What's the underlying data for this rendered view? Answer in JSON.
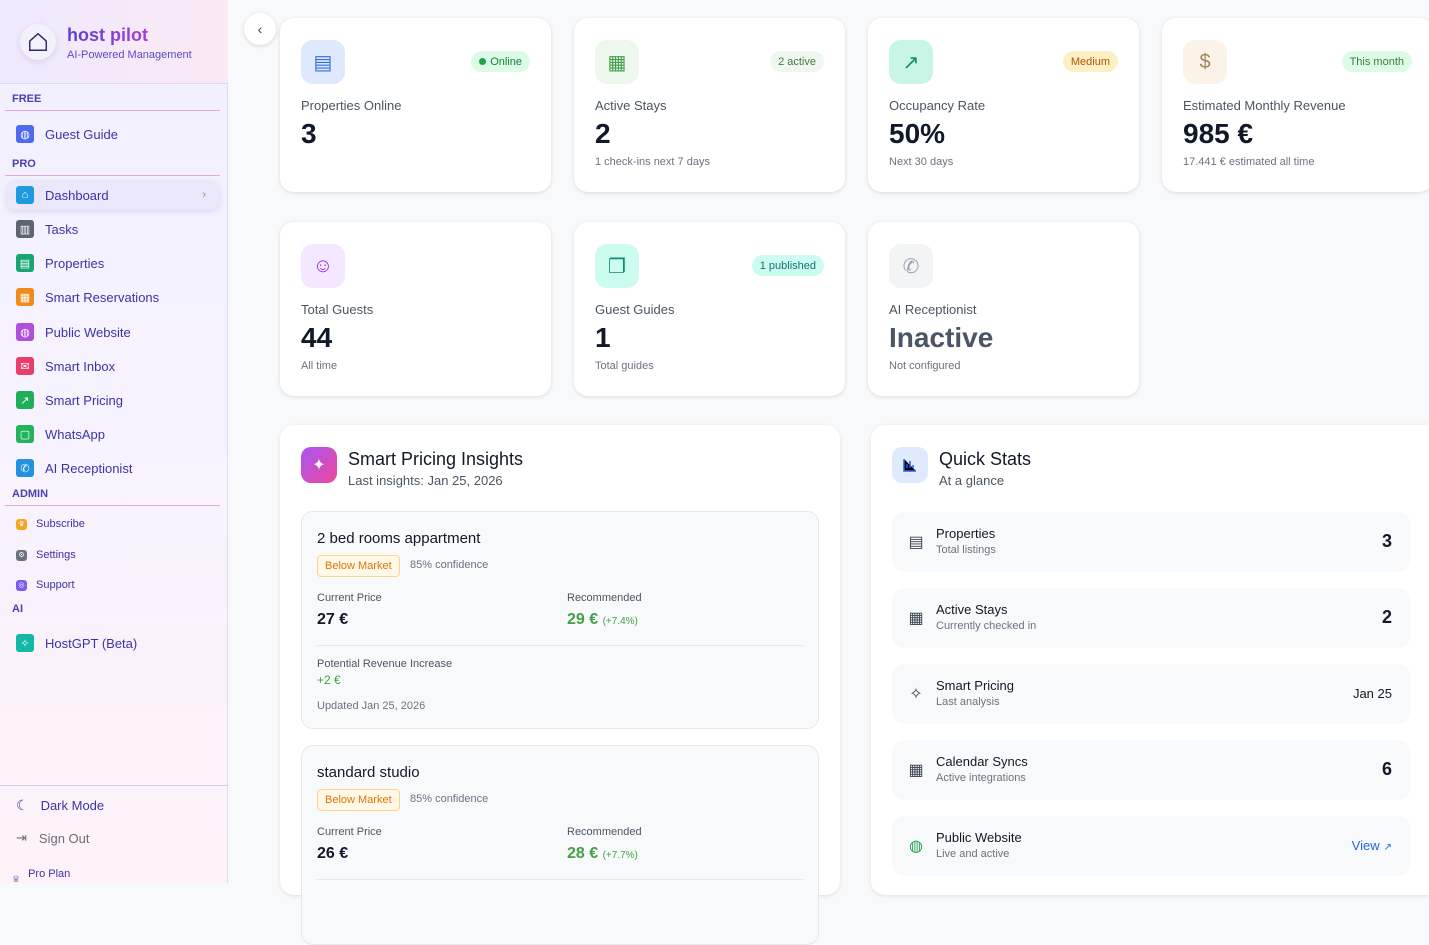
{
  "sidebar": {
    "brand": {
      "name": "host pilot",
      "tagline": "AI-Powered Management"
    },
    "sections": {
      "free": "FREE",
      "pro": "PRO",
      "admin": "ADMIN",
      "ai": "AI"
    },
    "items": [
      {
        "label": "Guest Guide",
        "icon": "globe-icon",
        "color": "#4f6bed"
      },
      {
        "label": "Dashboard",
        "icon": "home-icon",
        "color": "#1e9be0",
        "active": true
      },
      {
        "label": "Tasks",
        "icon": "kanban-icon",
        "color": "#5f6472"
      },
      {
        "label": "Properties",
        "icon": "building-icon",
        "color": "#17a673"
      },
      {
        "label": "Smart Reservations",
        "icon": "calendar-icon",
        "color": "#f28a1a"
      },
      {
        "label": "Public Website",
        "icon": "globe-icon",
        "color": "#b04fd8"
      },
      {
        "label": "Smart Inbox",
        "icon": "inbox-icon",
        "color": "#e83e6b"
      },
      {
        "label": "Smart Pricing",
        "icon": "trending-up-icon",
        "color": "#1fae5b"
      },
      {
        "label": "WhatsApp",
        "icon": "message-icon",
        "color": "#22b45a"
      },
      {
        "label": "AI Receptionist",
        "icon": "phone-icon",
        "color": "#2490e0"
      },
      {
        "label": "Subscribe",
        "icon": "crown-icon",
        "color": "#f5a623"
      },
      {
        "label": "Settings",
        "icon": "gear-icon",
        "color": "#6b7280"
      },
      {
        "label": "Support",
        "icon": "support-icon",
        "color": "#7c5cf0"
      },
      {
        "label": "HostGPT (Beta)",
        "icon": "sparkles-icon",
        "color": "#14b8a6"
      }
    ],
    "dark_mode": "Dark Mode",
    "sign_out": "Sign Out",
    "plan": "Pro Plan"
  },
  "stats": [
    {
      "label": "Properties Online",
      "value": "3",
      "sub": "",
      "badge": "Online",
      "badge_dot": true,
      "icon": "building-icon",
      "icon_color": "#2f6fe0",
      "icon_bg": "#dfe9fd",
      "badge_bg": "#dcfce7",
      "badge_fg": "#16803c"
    },
    {
      "label": "Active Stays",
      "value": "2",
      "sub": "1 check-ins next 7 days",
      "badge": "2 active",
      "icon": "calendar-icon",
      "icon_color": "#43a047",
      "icon_bg": "#eef7ee",
      "badge_bg": "#f0f7f0",
      "badge_fg": "#3f7a3f"
    },
    {
      "label": "Occupancy Rate",
      "value": "50%",
      "sub": "Next 30 days",
      "badge": "Medium",
      "icon": "trending-up-icon",
      "icon_color": "#1a8a6a",
      "icon_bg": "#c9f5e6",
      "badge_bg": "#fdf0c4",
      "badge_fg": "#b45309"
    },
    {
      "label": "Estimated Monthly Revenue",
      "value": "985 €",
      "sub": "17.441 € estimated all time",
      "badge": "This month",
      "icon": "dollar-icon",
      "icon_color": "#a0845a",
      "icon_bg": "#fbf3e8",
      "badge_bg": "#dcfce7",
      "badge_fg": "#3f7a3f"
    },
    {
      "label": "Total Guests",
      "value": "44",
      "sub": "All time",
      "badge": "",
      "icon": "users-icon",
      "icon_color": "#9333ea",
      "icon_bg": "#f3e8ff"
    },
    {
      "label": "Guest Guides",
      "value": "1",
      "sub": "Total guides",
      "badge": "1 published",
      "icon": "book-icon",
      "icon_color": "#0f8a74",
      "icon_bg": "#ccfbef",
      "badge_bg": "#ccfbef",
      "badge_fg": "#0f766e"
    },
    {
      "label": "AI Receptionist",
      "value": "Inactive",
      "sub": "Not configured",
      "badge": "",
      "icon": "phone-icon",
      "icon_color": "#9ca3af",
      "icon_bg": "#f3f4f6",
      "value_color": "#4b5563"
    }
  ],
  "pricing": {
    "title": "Smart Pricing Insights",
    "subtitle": "Last insights: Jan 25, 2026",
    "current_label": "Current Price",
    "recommended_label": "Recommended",
    "revenue_label": "Potential Revenue Increase",
    "insights": [
      {
        "name": "2 bed rooms appartment",
        "status": "Below Market",
        "confidence": "85% confidence",
        "current": "27 €",
        "recommended": "29 €",
        "change": "(+7.4%)",
        "revenue": "+2 €",
        "updated": "Updated Jan 25, 2026"
      },
      {
        "name": "standard studio",
        "status": "Below Market",
        "confidence": "85% confidence",
        "current": "26 €",
        "recommended": "28 €",
        "change": "(+7.7%)"
      }
    ]
  },
  "quick_stats": {
    "title": "Quick Stats",
    "subtitle": "At a glance",
    "rows": [
      {
        "title": "Properties",
        "sub": "Total listings",
        "value": "3",
        "icon": "building-icon"
      },
      {
        "title": "Active Stays",
        "sub": "Currently checked in",
        "value": "2",
        "icon": "calendar-icon"
      },
      {
        "title": "Smart Pricing",
        "sub": "Last analysis",
        "value": "Jan 25",
        "icon": "sparkles-icon"
      },
      {
        "title": "Calendar Syncs",
        "sub": "Active integrations",
        "value": "6",
        "icon": "calendar-icon"
      },
      {
        "title": "Public Website",
        "sub": "Live and active",
        "value": "View",
        "icon": "globe-icon",
        "link": true
      }
    ]
  }
}
